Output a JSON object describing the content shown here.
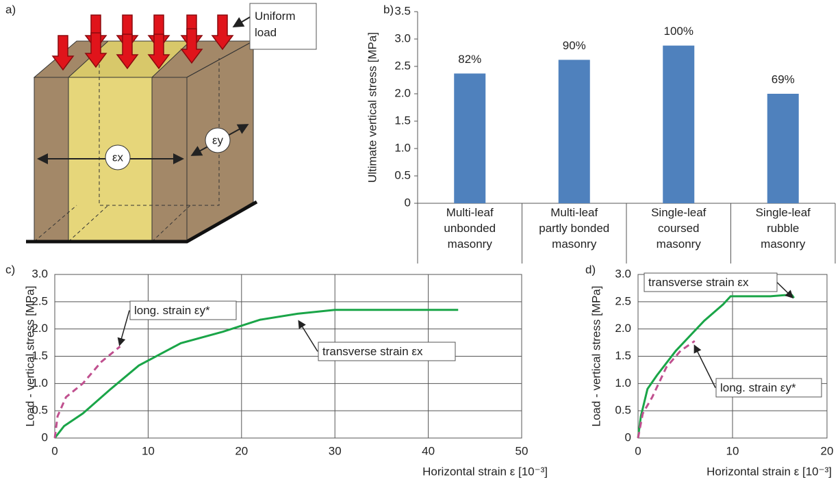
{
  "diagram": {
    "label": "a)",
    "load_label": "Uniform load",
    "strain_x": "εx",
    "strain_y": "εy"
  },
  "chart_data": [
    {
      "type": "bar",
      "label": "b)",
      "y_label": "Ultimate vertical stress [MPa]",
      "categories": [
        "Multi-leaf\nunbonded\nmasonry",
        "Multi-leaf\npartly bonded\nmasonry",
        "Single-leaf\ncoursed\nmasonry",
        "Single-leaf\nrubble\nmasonry"
      ],
      "values": [
        2.37,
        2.62,
        2.88,
        2.0
      ],
      "annotations": [
        "82%",
        "90%",
        "100%",
        "69%"
      ],
      "color": "#4f81bd",
      "grid": false,
      "ylim": [
        0,
        3.5
      ],
      "yticks": [
        0,
        0.5,
        {
          "value": 1,
          "label": "1.0"
        },
        1.5,
        {
          "value": 2,
          "label": "2.0"
        },
        2.5,
        {
          "value": 3,
          "label": "3.0"
        },
        3.5
      ]
    },
    {
      "type": "line",
      "label": "c)",
      "x_label": "Horizontal strain ε [10⁻³]",
      "y_label": "Load - vertical stress [MPa]",
      "grid": true,
      "xlim": [
        0,
        50
      ],
      "xticks": [
        0,
        10,
        20,
        30,
        40,
        50
      ],
      "ylim": [
        0,
        3
      ],
      "yticks": [
        0,
        0.5,
        {
          "value": 1,
          "label": "1.0"
        },
        1.5,
        {
          "value": 2,
          "label": "2.0"
        },
        2.5,
        {
          "value": 3,
          "label": "3.0"
        }
      ],
      "series": [
        {
          "name": "transverse strain εx",
          "color": "#1aa548",
          "style": "solid",
          "x": [
            0,
            1,
            3,
            6,
            9,
            13.5,
            18,
            22,
            26,
            30,
            43.2
          ],
          "values": [
            0,
            0.22,
            0.45,
            0.9,
            1.33,
            1.74,
            1.95,
            2.17,
            2.28,
            2.35,
            2.35
          ]
        },
        {
          "name": "long. strain εy*",
          "color": "#c0508f",
          "style": "dashed",
          "x": [
            0,
            0.3,
            1.2,
            3,
            5,
            7
          ],
          "values": [
            0,
            0.4,
            0.75,
            1.0,
            1.4,
            1.68
          ]
        }
      ]
    },
    {
      "type": "line",
      "label": "d)",
      "x_label": "Horizontal strain ε [10⁻³]",
      "y_label": "Load - vertical stress [MPa]",
      "grid": true,
      "xlim": [
        0,
        20
      ],
      "xticks": [
        0,
        10,
        20
      ],
      "ylim": [
        0,
        3
      ],
      "yticks": [
        0,
        0.5,
        {
          "value": 1,
          "label": "1.0"
        },
        1.5,
        {
          "value": 2,
          "label": "2.0"
        },
        2.5,
        {
          "value": 3,
          "label": "3.0"
        }
      ],
      "series": [
        {
          "name": "transverse strain εx",
          "color": "#1aa548",
          "style": "solid",
          "x": [
            0,
            0.3,
            1,
            2,
            4,
            7,
            9,
            9.8,
            14,
            15.5,
            16.3,
            16.5
          ],
          "values": [
            0,
            0.4,
            0.9,
            1.15,
            1.6,
            2.15,
            2.45,
            2.6,
            2.6,
            2.62,
            2.62,
            2.57
          ]
        },
        {
          "name": "long. strain εy*",
          "color": "#c0508f",
          "style": "dashed",
          "x": [
            0,
            0.5,
            1.5,
            3,
            4.5,
            6
          ],
          "values": [
            0,
            0.45,
            0.75,
            1.3,
            1.6,
            1.78
          ]
        }
      ]
    }
  ]
}
